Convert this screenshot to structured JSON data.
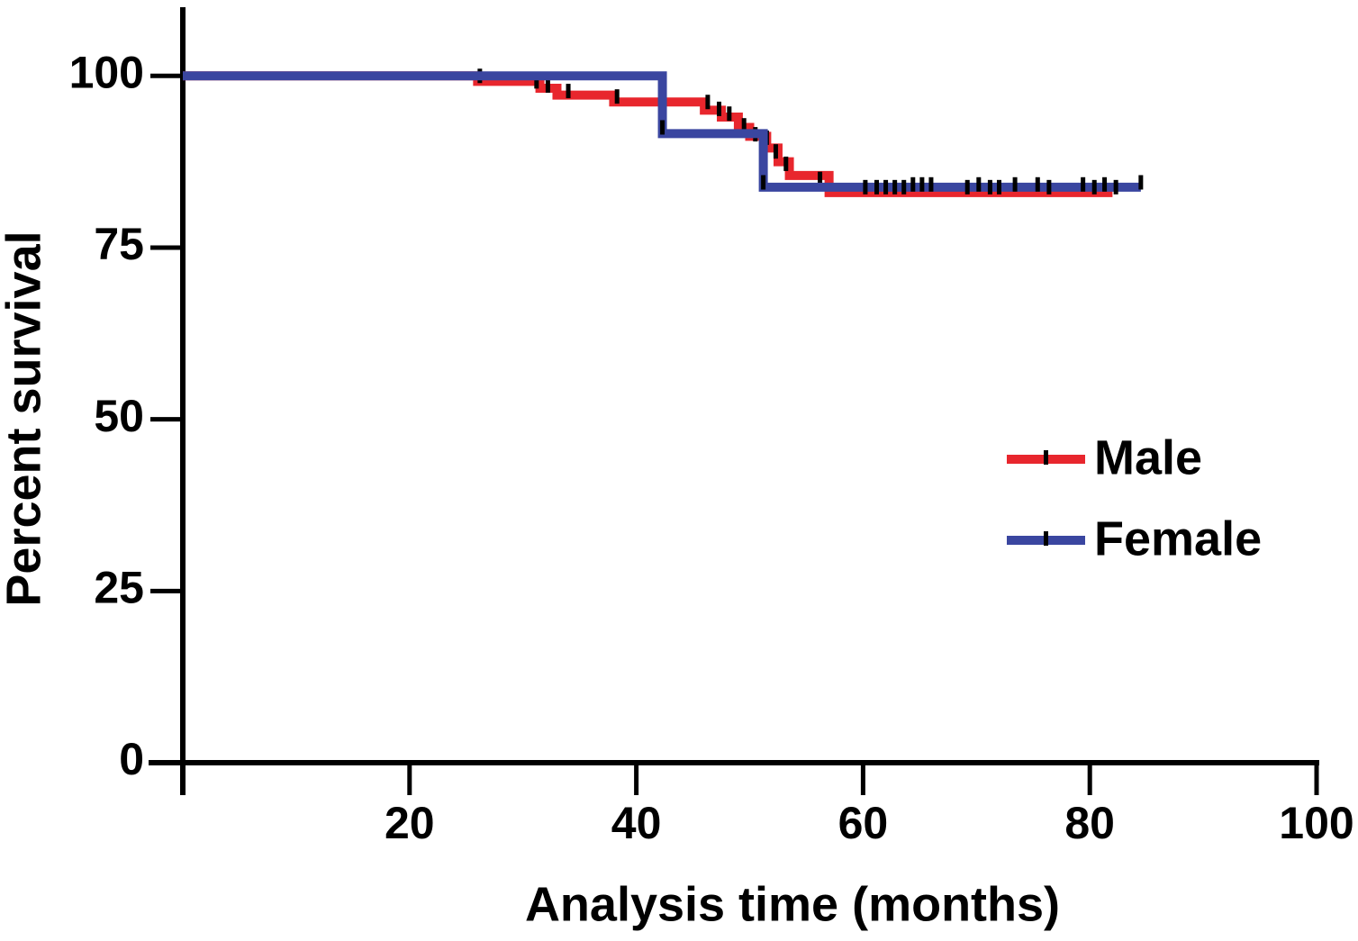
{
  "chart_data": {
    "type": "step",
    "x_label": "Analysis time (months)",
    "y_label": "Percent survival",
    "xlim": [
      0,
      100
    ],
    "xticks": [
      20,
      40,
      60,
      80,
      100
    ],
    "ylim": [
      0,
      110
    ],
    "yticks": [
      0,
      25,
      50,
      75,
      100
    ],
    "legend": "right",
    "series": [
      {
        "name": "Male",
        "color": "#e8262d",
        "x": [
          0,
          26,
          31.5,
          33,
          38,
          46,
          47.5,
          49,
          50,
          51.5,
          52.5,
          53.5,
          57,
          82
        ],
        "values": [
          100,
          99.2,
          98.2,
          97.2,
          96.2,
          95,
          94,
          92.5,
          91.2,
          89.5,
          87.5,
          85.5,
          83,
          83
        ],
        "censored": {
          "x": [
            26.2,
            31.2,
            32.2,
            34,
            38.3,
            46.3,
            47.3,
            48.2,
            49.5,
            50.5,
            51.5,
            52.3,
            53.2,
            56.2
          ],
          "values": [
            100,
            99.2,
            98.6,
            97.8,
            97,
            96.2,
            95.2,
            94.5,
            92.8,
            91.5,
            91,
            89,
            87.2,
            85
          ]
        }
      },
      {
        "name": "Female",
        "color": "#3a46a0",
        "x": [
          0,
          42.3,
          51.2,
          84.5
        ],
        "values": [
          100,
          91.6,
          83.8,
          83.8
        ],
        "censored": {
          "x": [
            42.3,
            51.2,
            60.2,
            61.2,
            62,
            62.8,
            63.6,
            64.4,
            65.2,
            66,
            69.2,
            70.2,
            71.2,
            72,
            73.4,
            75.4,
            76.4,
            79.4,
            80.4,
            81.3,
            82.3,
            84.5
          ],
          "values": [
            92.5,
            84.5,
            83.8,
            83.8,
            83.8,
            83.8,
            83.8,
            84.2,
            84.2,
            84.2,
            83.8,
            84.2,
            83.8,
            83.8,
            84.2,
            84.2,
            83.8,
            84.2,
            83.8,
            84.2,
            83.8,
            84.5
          ]
        }
      }
    ]
  }
}
